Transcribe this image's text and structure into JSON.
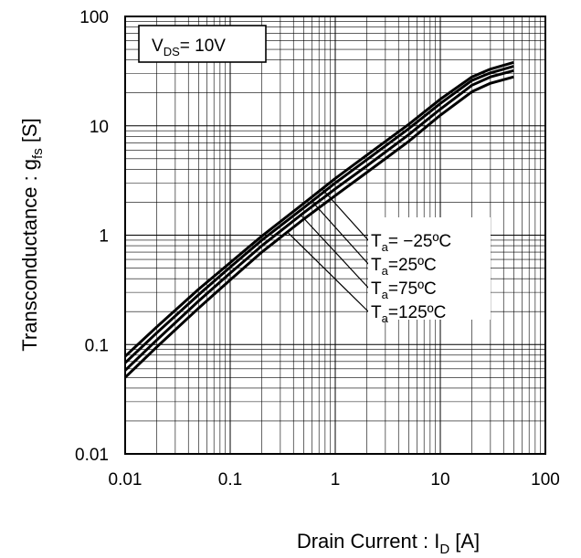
{
  "chart_data": {
    "type": "line",
    "x_scale": "log",
    "y_scale": "log",
    "xlim": [
      0.01,
      100
    ],
    "ylim": [
      0.01,
      100
    ],
    "grid": true,
    "x_ticks": [
      "0.01",
      "0.1",
      "1",
      "10",
      "100"
    ],
    "y_ticks": [
      "0.01",
      "0.1",
      "1",
      "10",
      "100"
    ],
    "ylabel": {
      "main": "Transconductance : g",
      "sub": "fs",
      "unit": " [S]"
    },
    "xlabel": {
      "main": "Drain Current : I",
      "sub": "D",
      "unit": " [A]"
    },
    "condition": {
      "main": "V",
      "sub": "DS",
      "rest": "= 10V"
    },
    "series": [
      {
        "name": "Ta= −25ºC",
        "label_main": "T",
        "label_sub": "a",
        "label_rest": "= −25ºC",
        "x": [
          0.01,
          0.02,
          0.05,
          0.1,
          0.2,
          0.5,
          1,
          2,
          5,
          10,
          20,
          30,
          50
        ],
        "y": [
          0.078,
          0.145,
          0.32,
          0.56,
          0.98,
          1.95,
          3.3,
          5.4,
          10.3,
          17.5,
          28,
          33,
          38
        ]
      },
      {
        "name": "Ta=25ºC",
        "label_main": "T",
        "label_sub": "a",
        "label_rest": "=25ºC",
        "x": [
          0.01,
          0.02,
          0.05,
          0.1,
          0.2,
          0.5,
          1,
          2,
          5,
          10,
          20,
          30,
          50
        ],
        "y": [
          0.068,
          0.128,
          0.285,
          0.51,
          0.9,
          1.78,
          3.0,
          4.9,
          9.4,
          16,
          26,
          30.5,
          35
        ]
      },
      {
        "name": "Ta=75ºC",
        "label_main": "T",
        "label_sub": "a",
        "label_rest": "=75ºC",
        "x": [
          0.01,
          0.02,
          0.05,
          0.1,
          0.2,
          0.5,
          1,
          2,
          5,
          10,
          20,
          30,
          50
        ],
        "y": [
          0.058,
          0.11,
          0.25,
          0.45,
          0.8,
          1.6,
          2.65,
          4.3,
          8.3,
          14.2,
          23.5,
          28,
          32
        ]
      },
      {
        "name": "Ta=125ºC",
        "label_main": "T",
        "label_sub": "a",
        "label_rest": "=125ºC",
        "x": [
          0.01,
          0.02,
          0.05,
          0.1,
          0.2,
          0.5,
          1,
          2,
          5,
          10,
          20,
          30,
          50
        ],
        "y": [
          0.05,
          0.095,
          0.215,
          0.39,
          0.7,
          1.4,
          2.3,
          3.75,
          7.2,
          12.5,
          20.5,
          24.5,
          28
        ]
      }
    ]
  }
}
